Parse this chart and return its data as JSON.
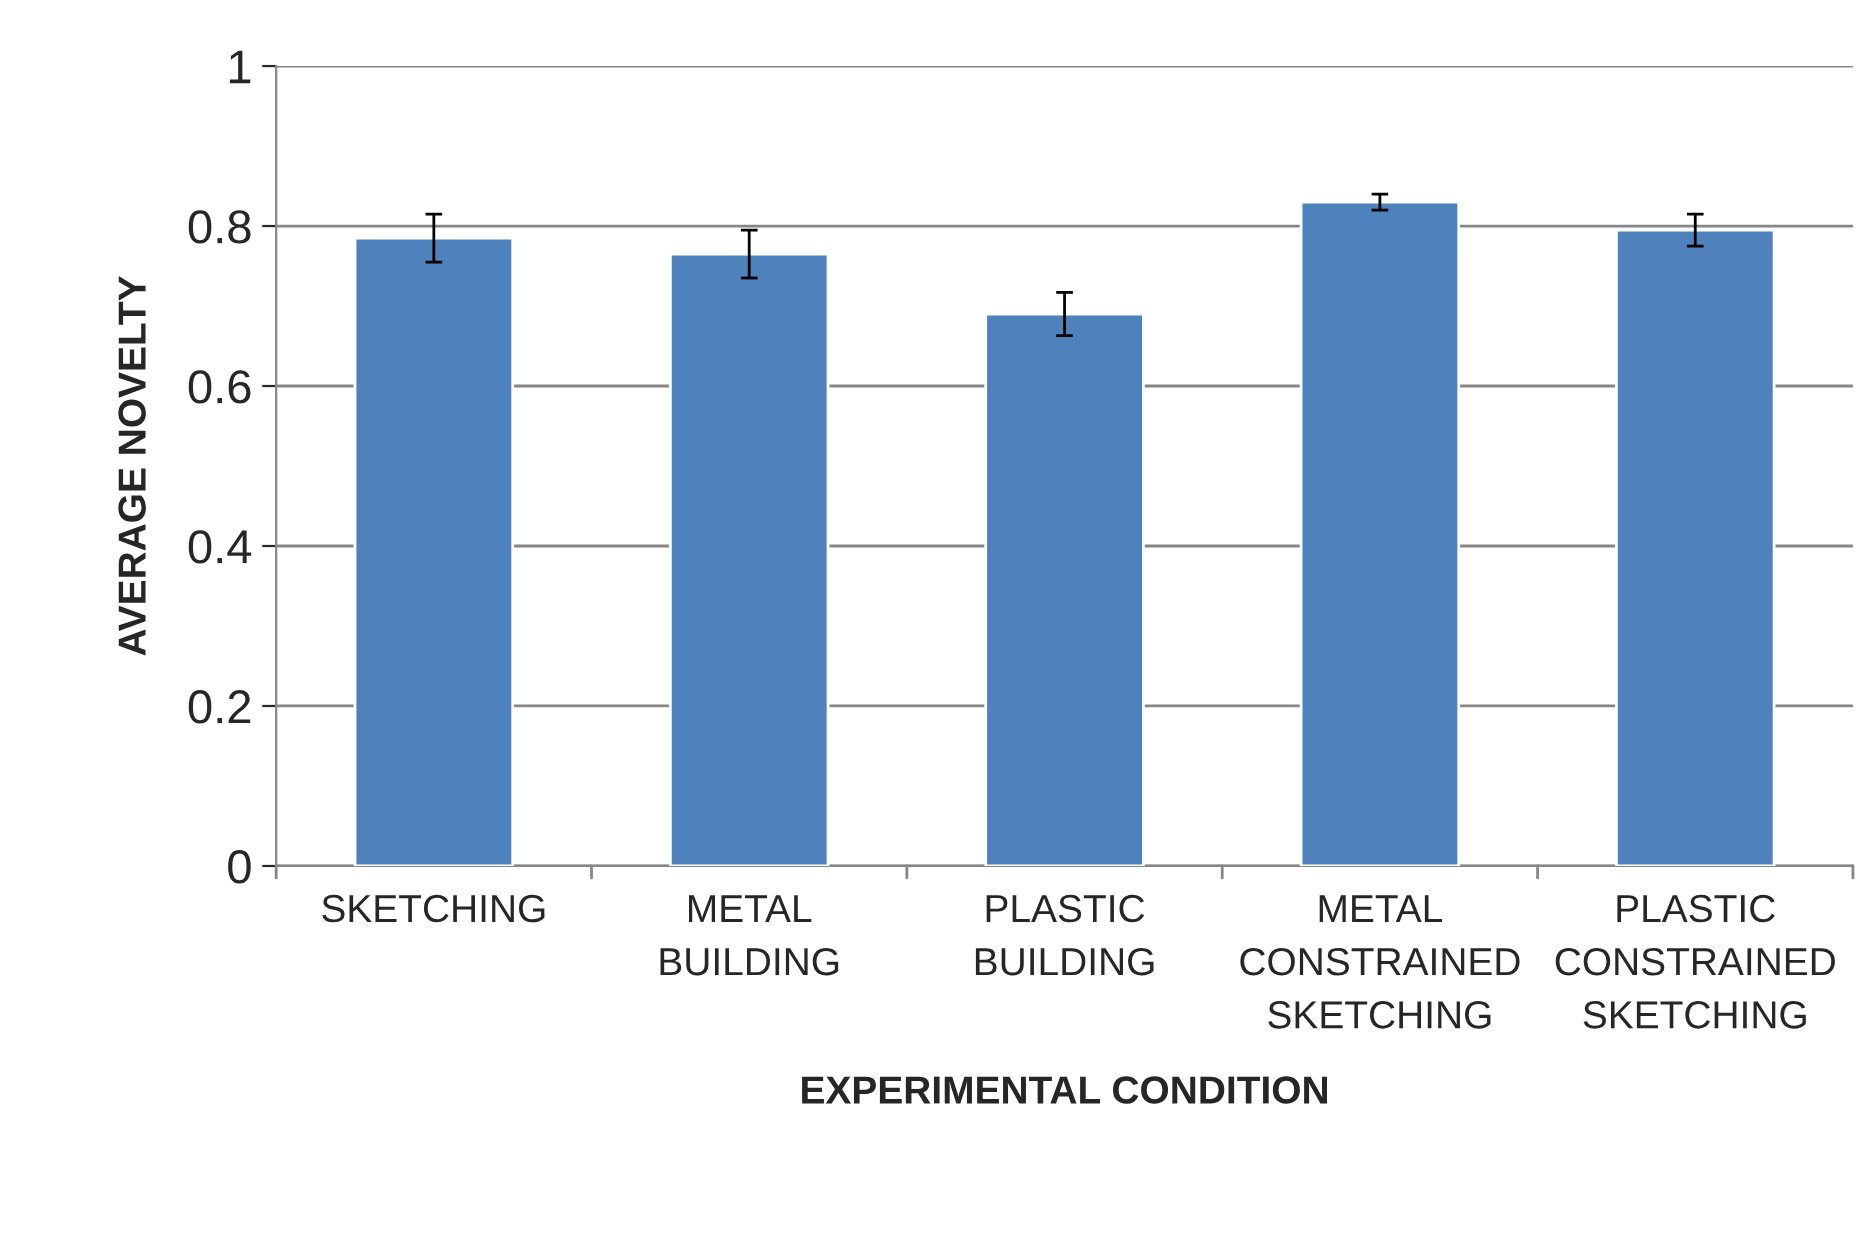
{
  "chart_data": {
    "type": "bar",
    "xlabel": "EXPERIMENTAL CONDITION",
    "ylabel": "AVERAGE NOVELTY",
    "categories": [
      "SKETCHING",
      "METAL\nBUILDING",
      "PLASTIC\nBUILDING",
      "METAL\nCONSTRAINED\nSKETCHING",
      "PLASTIC\nCONSTRAINED\nSKETCHING"
    ],
    "values": [
      0.785,
      0.765,
      0.69,
      0.83,
      0.795
    ],
    "errors": [
      0.03,
      0.03,
      0.027,
      0.01,
      0.02
    ],
    "color": "#4f81bd",
    "ylim": [
      0,
      1
    ],
    "yticks": [
      0,
      0.2,
      0.4,
      0.6,
      0.8,
      1
    ],
    "grid": "y",
    "legend": false
  }
}
